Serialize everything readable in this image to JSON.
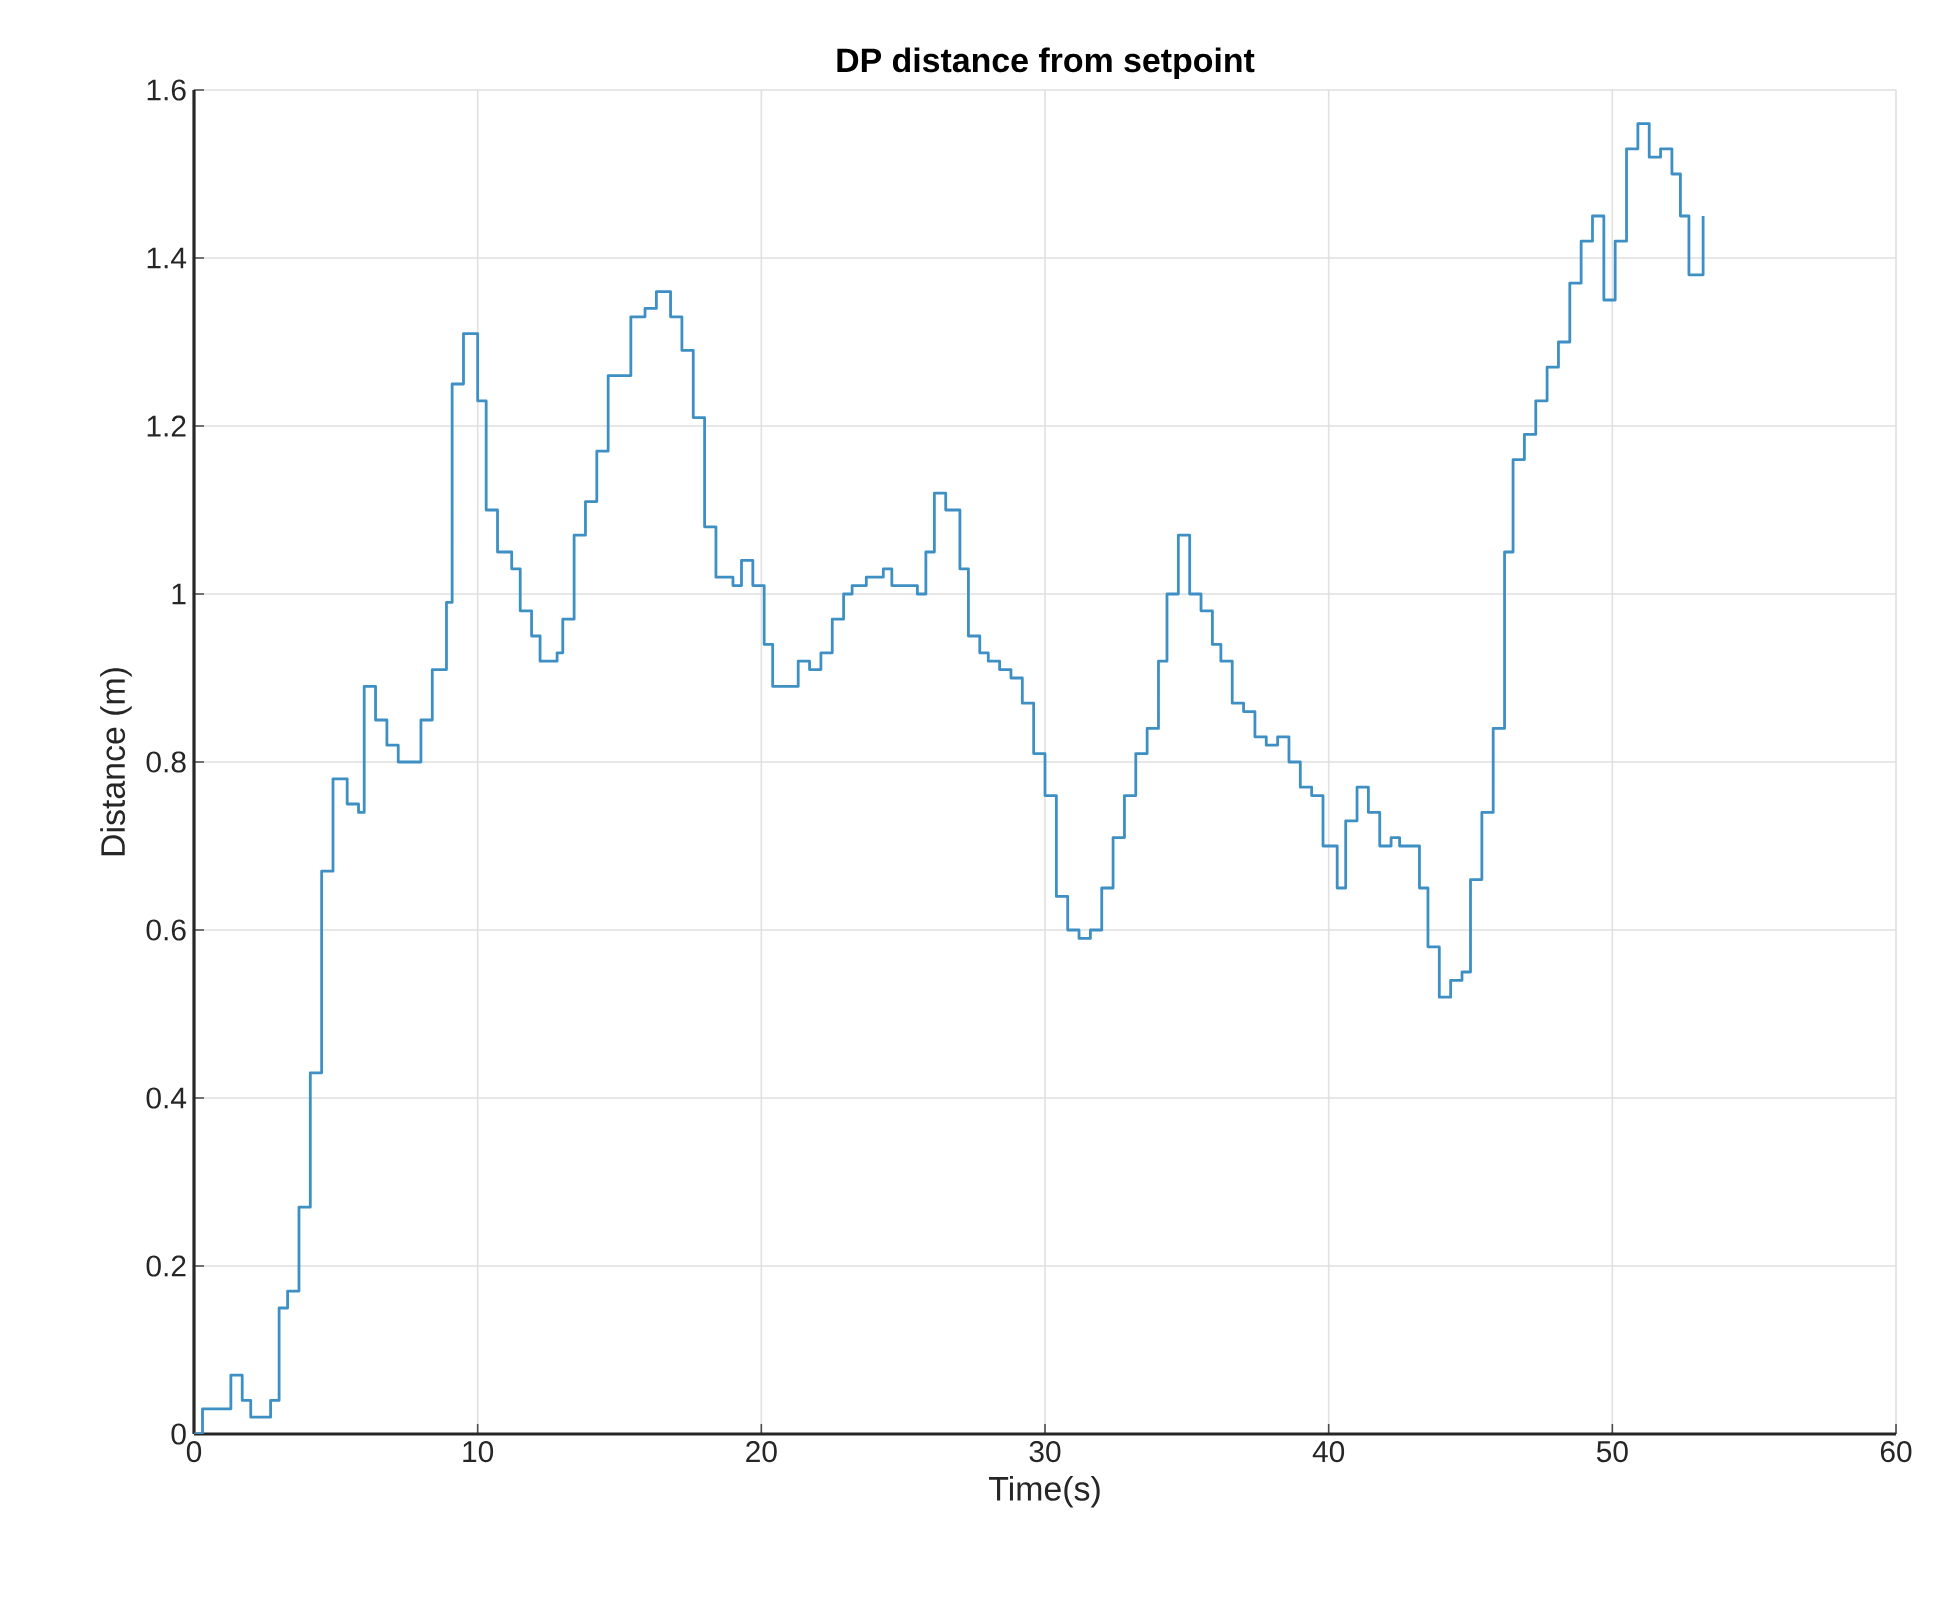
{
  "chart_data": {
    "type": "step",
    "title": "DP distance from setpoint",
    "xlabel": "Time(s)",
    "ylabel": "Distance (m)",
    "xlim": [
      0,
      60
    ],
    "ylim": [
      0,
      1.6
    ],
    "xticks": [
      0,
      10,
      20,
      30,
      40,
      50,
      60
    ],
    "yticks": [
      0,
      0.2,
      0.4,
      0.6,
      0.8,
      {
        "value": 1,
        "label": "1"
      },
      1.2,
      1.4,
      1.6
    ],
    "grid": true,
    "series": [
      {
        "color": "#3d8fc4",
        "x": [
          0,
          0.3,
          1.3,
          1.7,
          2.0,
          2.7,
          3.0,
          3.3,
          3.7,
          4.1,
          4.5,
          4.9,
          5.4,
          5.8,
          6.0,
          6.4,
          6.8,
          7.2,
          8.0,
          8.4,
          8.9,
          9.1,
          9.5,
          10.0,
          10.3,
          10.7,
          11.2,
          11.5,
          11.9,
          12.2,
          12.8,
          13.0,
          13.4,
          13.8,
          14.2,
          14.6,
          15.4,
          15.9,
          16.3,
          16.8,
          17.2,
          17.6,
          18.0,
          18.4,
          19.0,
          19.3,
          19.7,
          20.1,
          20.4,
          21.3,
          21.7,
          22.1,
          22.5,
          22.9,
          23.2,
          23.7,
          24.3,
          24.6,
          25.5,
          25.8,
          26.1,
          26.5,
          27.0,
          27.3,
          27.7,
          28.0,
          28.4,
          28.8,
          29.2,
          29.6,
          30.0,
          30.4,
          30.8,
          31.2,
          31.6,
          32.0,
          32.4,
          32.8,
          33.2,
          33.6,
          34.0,
          34.3,
          34.7,
          35.1,
          35.5,
          35.9,
          36.2,
          36.6,
          37.0,
          37.4,
          37.8,
          38.2,
          38.6,
          39.0,
          39.4,
          39.8,
          40.3,
          40.6,
          41.0,
          41.4,
          41.8,
          42.2,
          42.5,
          43.2,
          43.5,
          43.9,
          44.3,
          44.7,
          45.0,
          45.4,
          45.8,
          46.2,
          46.5,
          46.9,
          47.3,
          47.7,
          48.1,
          48.5,
          48.9,
          49.3,
          49.7,
          50.1,
          50.5,
          50.9,
          51.3,
          51.7,
          52.1,
          52.4,
          52.7,
          53.2
        ],
        "values": [
          0.0,
          0.03,
          0.07,
          0.04,
          0.02,
          0.04,
          0.15,
          0.17,
          0.27,
          0.43,
          0.67,
          0.78,
          0.75,
          0.74,
          0.89,
          0.85,
          0.82,
          0.8,
          0.85,
          0.91,
          0.99,
          1.25,
          1.31,
          1.23,
          1.1,
          1.05,
          1.03,
          0.98,
          0.95,
          0.92,
          0.93,
          0.97,
          1.07,
          1.11,
          1.17,
          1.26,
          1.33,
          1.34,
          1.36,
          1.33,
          1.29,
          1.21,
          1.08,
          1.02,
          1.01,
          1.04,
          1.01,
          0.94,
          0.89,
          0.92,
          0.91,
          0.93,
          0.97,
          1.0,
          1.01,
          1.02,
          1.03,
          1.01,
          1.0,
          1.05,
          1.12,
          1.1,
          1.03,
          0.95,
          0.93,
          0.92,
          0.91,
          0.9,
          0.87,
          0.81,
          0.76,
          0.64,
          0.6,
          0.59,
          0.6,
          0.65,
          0.71,
          0.76,
          0.81,
          0.84,
          0.92,
          1.0,
          1.07,
          1.0,
          0.98,
          0.94,
          0.92,
          0.87,
          0.86,
          0.83,
          0.82,
          0.83,
          0.8,
          0.77,
          0.76,
          0.7,
          0.65,
          0.73,
          0.77,
          0.74,
          0.7,
          0.71,
          0.7,
          0.65,
          0.58,
          0.52,
          0.54,
          0.55,
          0.66,
          0.74,
          0.84,
          1.05,
          1.16,
          1.19,
          1.23,
          1.27,
          1.3,
          1.37,
          1.42,
          1.45,
          1.35,
          1.42,
          1.53,
          1.56,
          1.52,
          1.53,
          1.5,
          1.45,
          1.38,
          1.45
        ]
      }
    ]
  }
}
